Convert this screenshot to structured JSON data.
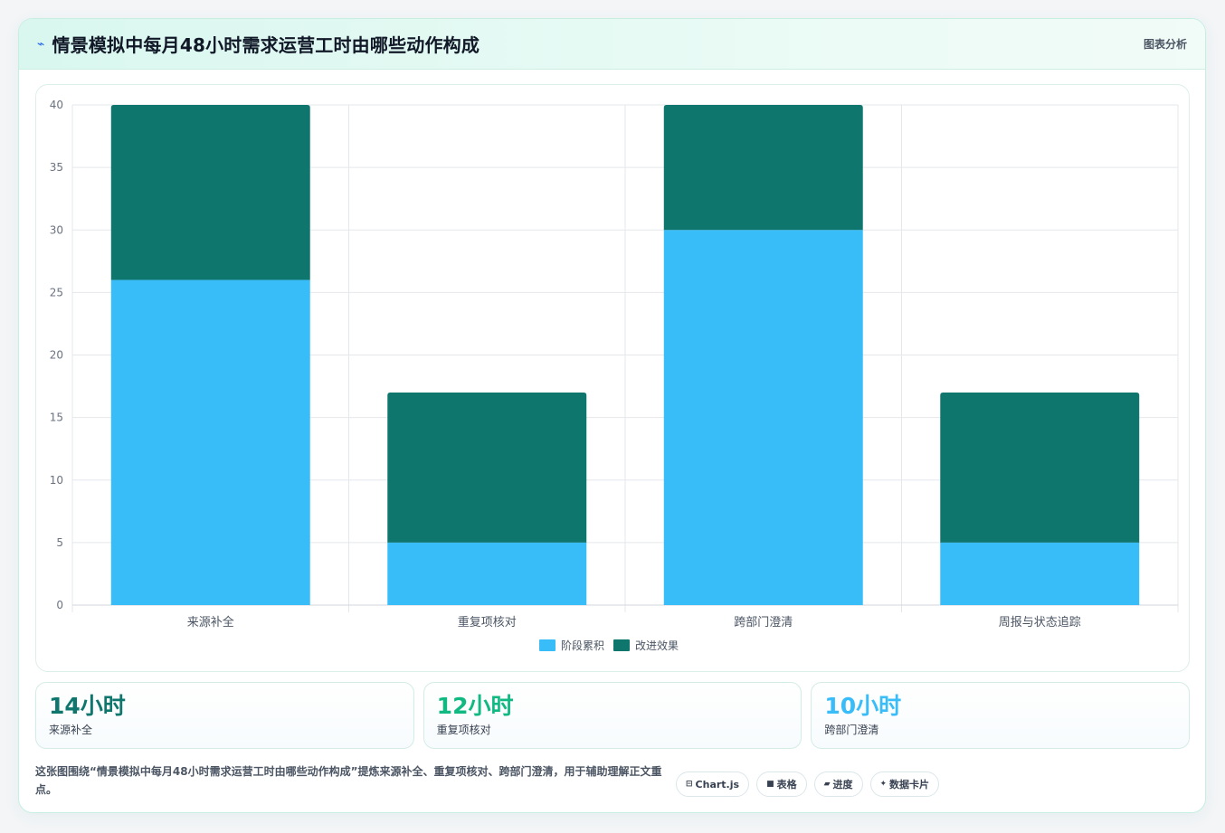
{
  "header": {
    "icon": "lightning-icon",
    "title": "情景模拟中每月48小时需求运营工时由哪些动作构成",
    "tag": "图表分析"
  },
  "chart_data": {
    "type": "bar",
    "stacked": true,
    "categories": [
      "来源补全",
      "重复项核对",
      "跨部门澄清",
      "周报与状态追踪"
    ],
    "series": [
      {
        "name": "阶段累积",
        "values": [
          26,
          5,
          30,
          5
        ],
        "color": "#38bdf8"
      },
      {
        "name": "改进效果",
        "values": [
          14,
          12,
          10,
          12
        ],
        "color": "#0f766e"
      }
    ],
    "ylim": [
      0,
      40
    ],
    "yticks": [
      0,
      5,
      10,
      15,
      20,
      25,
      30,
      35,
      40
    ],
    "grid": true,
    "legend": "bottom-center"
  },
  "stats": [
    {
      "value": "14小时",
      "label": "来源补全",
      "color": "#0f766e"
    },
    {
      "value": "12小时",
      "label": "重复项核对",
      "color": "#10b981"
    },
    {
      "value": "10小时",
      "label": "跨部门澄清",
      "color": "#38bdf8"
    }
  ],
  "footer": {
    "text": "这张图围绕“情景模拟中每月48小时需求运营工时由哪些动作构成”提炼来源补全、重复项核对、跨部门澄清，用于辅助理解正文重点。",
    "chips": [
      {
        "icon": "chart-icon",
        "glyph": "⊟",
        "label": "Chart.js"
      },
      {
        "icon": "table-icon",
        "glyph": "■",
        "label": "表格"
      },
      {
        "icon": "progress-icon",
        "glyph": "▰",
        "label": "进度"
      },
      {
        "icon": "sparkle-icon",
        "glyph": "✦",
        "label": "数据卡片"
      }
    ]
  }
}
